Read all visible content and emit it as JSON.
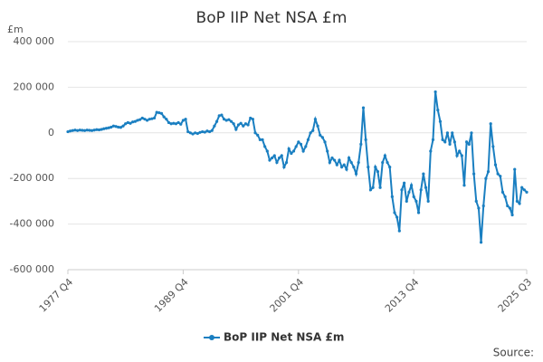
{
  "chart_data": {
    "type": "line",
    "title": "BoP IIP Net NSA £m",
    "y_label": "£m",
    "source": "Source:",
    "categories": [
      "1977 Q4",
      null,
      null,
      null,
      null,
      null,
      null,
      null,
      null,
      null,
      null,
      null,
      null,
      null,
      null,
      null,
      null,
      null,
      null,
      null,
      null,
      null,
      null,
      null,
      null,
      null,
      null,
      null,
      null,
      null,
      null,
      null,
      null,
      null,
      null,
      null,
      null,
      null,
      null,
      null,
      null,
      null,
      null,
      null,
      null,
      null,
      null,
      null,
      "1989 Q4",
      null,
      null,
      null,
      null,
      null,
      null,
      null,
      null,
      null,
      null,
      null,
      null,
      null,
      null,
      null,
      null,
      null,
      null,
      null,
      null,
      null,
      null,
      null,
      null,
      null,
      null,
      null,
      null,
      null,
      null,
      null,
      null,
      null,
      null,
      null,
      null,
      null,
      null,
      null,
      null,
      null,
      null,
      null,
      null,
      null,
      null,
      null,
      "2001 Q4",
      null,
      null,
      null,
      null,
      null,
      null,
      null,
      null,
      null,
      null,
      null,
      null,
      null,
      null,
      null,
      null,
      null,
      null,
      null,
      null,
      null,
      null,
      null,
      null,
      null,
      null,
      null,
      null,
      null,
      null,
      null,
      null,
      null,
      null,
      null,
      null,
      null,
      null,
      null,
      null,
      null,
      null,
      null,
      null,
      null,
      null,
      null,
      "2013 Q4",
      null,
      null,
      null,
      null,
      null,
      null,
      null,
      null,
      null,
      null,
      null,
      null,
      null,
      null,
      null,
      null,
      null,
      null,
      null,
      null,
      null,
      null,
      null,
      null,
      null,
      null,
      null,
      null,
      null,
      null,
      null,
      null,
      null,
      null,
      null,
      null,
      null,
      null,
      null,
      null,
      null,
      null,
      null,
      null,
      null,
      null,
      "2025 Q3"
    ],
    "series": [
      {
        "name": "BoP IIP Net NSA £m",
        "color": "#1a7fc1",
        "values": [
          5000,
          8000,
          10000,
          12000,
          10000,
          12000,
          11000,
          10000,
          12000,
          11000,
          10000,
          12000,
          14000,
          13000,
          15000,
          18000,
          20000,
          22000,
          25000,
          30000,
          28000,
          25000,
          24000,
          30000,
          40000,
          45000,
          42000,
          48000,
          50000,
          55000,
          58000,
          65000,
          60000,
          55000,
          60000,
          62000,
          65000,
          90000,
          88000,
          85000,
          70000,
          60000,
          45000,
          40000,
          42000,
          40000,
          45000,
          38000,
          55000,
          60000,
          5000,
          0,
          -5000,
          0,
          -3000,
          2000,
          5000,
          3000,
          8000,
          5000,
          10000,
          30000,
          50000,
          75000,
          78000,
          60000,
          55000,
          58000,
          50000,
          40000,
          15000,
          35000,
          42000,
          30000,
          40000,
          35000,
          65000,
          60000,
          0,
          -10000,
          -30000,
          -30000,
          -60000,
          -80000,
          -120000,
          -110000,
          -100000,
          -130000,
          -110000,
          -100000,
          -150000,
          -130000,
          -70000,
          -90000,
          -80000,
          -60000,
          -40000,
          -50000,
          -80000,
          -60000,
          -30000,
          0,
          10000,
          60000,
          30000,
          -10000,
          -20000,
          -40000,
          -80000,
          -130000,
          -110000,
          -120000,
          -140000,
          -120000,
          -150000,
          -140000,
          -160000,
          -110000,
          -130000,
          -150000,
          -180000,
          -130000,
          -50000,
          110000,
          -30000,
          -150000,
          -250000,
          -240000,
          -150000,
          -170000,
          -240000,
          -130000,
          -100000,
          -130000,
          -150000,
          -280000,
          -350000,
          -370000,
          -430000,
          -250000,
          -220000,
          -300000,
          -260000,
          -230000,
          -280000,
          -300000,
          -350000,
          -250000,
          -180000,
          -240000,
          -300000,
          -80000,
          -30000,
          180000,
          100000,
          50000,
          -30000,
          -40000,
          0,
          -50000,
          0,
          -40000,
          -100000,
          -80000,
          -100000,
          -230000,
          -40000,
          -50000,
          0,
          -180000,
          -300000,
          -330000,
          -480000,
          -320000,
          -200000,
          -170000,
          40000,
          -60000,
          -140000,
          -180000,
          -190000,
          -260000,
          -280000,
          -320000,
          -330000,
          -360000,
          -160000,
          -300000,
          -310000,
          -240000,
          -250000,
          -260000
        ]
      }
    ],
    "ylim": [
      -600000,
      400000
    ],
    "yticks": [
      {
        "value": -600000,
        "label": "-600 000"
      },
      {
        "value": -400000,
        "label": "-400 000"
      },
      {
        "value": -200000,
        "label": "-200 000"
      },
      0,
      {
        "value": 200000,
        "label": "200 000"
      },
      {
        "value": 400000,
        "label": "400 000"
      }
    ],
    "grid": true,
    "legend": "bottom"
  }
}
